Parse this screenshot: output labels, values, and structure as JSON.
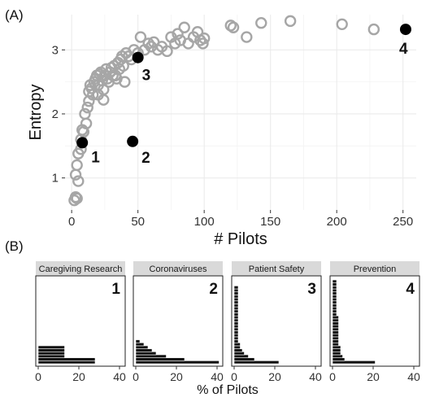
{
  "panel_a_label": "(A)",
  "panel_b_label": "(B)",
  "colors": {
    "hollow": "#a6a6a6",
    "highlight": "#000000",
    "strip": "#d9d9d9",
    "grid": "#ebebeb",
    "bar": "#111111",
    "bar_edge": "#ffffff"
  },
  "chart_data": [
    {
      "type": "scatter",
      "title": "",
      "xlabel": "# Pilots",
      "ylabel": "Entropy",
      "xlim": [
        -5,
        260
      ],
      "ylim": [
        0.5,
        3.55
      ],
      "xticks": [
        0,
        50,
        100,
        150,
        200,
        250
      ],
      "yticks": [
        1,
        2,
        3
      ],
      "grid": true,
      "series": [
        {
          "points": [
            [
              2,
              0.65
            ],
            [
              3,
              0.7
            ],
            [
              4,
              0.68
            ],
            [
              3,
              1.05
            ],
            [
              5,
              0.95
            ],
            [
              4,
              1.2
            ],
            [
              5,
              1.38
            ],
            [
              7,
              1.45
            ],
            [
              7,
              1.6
            ],
            [
              8,
              1.75
            ],
            [
              9,
              1.72
            ],
            [
              11,
              1.85
            ],
            [
              10,
              2.0
            ],
            [
              12,
              2.1
            ],
            [
              13,
              2.2
            ],
            [
              13,
              2.35
            ],
            [
              14,
              2.45
            ],
            [
              15,
              2.4
            ],
            [
              16,
              2.3
            ],
            [
              17,
              2.5
            ],
            [
              18,
              2.55
            ],
            [
              19,
              2.6
            ],
            [
              20,
              2.45
            ],
            [
              20,
              2.3
            ],
            [
              21,
              2.62
            ],
            [
              22,
              2.65
            ],
            [
              23,
              2.52
            ],
            [
              24,
              2.38
            ],
            [
              24,
              2.22
            ],
            [
              25,
              2.6
            ],
            [
              26,
              2.7
            ],
            [
              27,
              2.55
            ],
            [
              28,
              2.5
            ],
            [
              29,
              2.65
            ],
            [
              30,
              2.72
            ],
            [
              31,
              2.6
            ],
            [
              32,
              2.75
            ],
            [
              33,
              2.6
            ],
            [
              34,
              2.55
            ],
            [
              35,
              2.8
            ],
            [
              36,
              2.7
            ],
            [
              37,
              2.85
            ],
            [
              38,
              2.9
            ],
            [
              39,
              2.75
            ],
            [
              40,
              2.5
            ],
            [
              41,
              2.95
            ],
            [
              43,
              2.9
            ],
            [
              45,
              2.85
            ],
            [
              47,
              3.0
            ],
            [
              50,
              2.95
            ],
            [
              52,
              3.2
            ],
            [
              55,
              3.0
            ],
            [
              58,
              3.1
            ],
            [
              60,
              3.05
            ],
            [
              62,
              3.12
            ],
            [
              65,
              3.0
            ],
            [
              68,
              3.05
            ],
            [
              72,
              2.98
            ],
            [
              75,
              3.2
            ],
            [
              78,
              3.1
            ],
            [
              80,
              3.25
            ],
            [
              82,
              3.15
            ],
            [
              85,
              3.35
            ],
            [
              88,
              3.1
            ],
            [
              92,
              3.2
            ],
            [
              95,
              3.28
            ],
            [
              97,
              3.15
            ],
            [
              99,
              3.1
            ],
            [
              100,
              3.18
            ],
            [
              120,
              3.38
            ],
            [
              122,
              3.35
            ],
            [
              132,
              3.2
            ],
            [
              143,
              3.42
            ],
            [
              165,
              3.45
            ],
            [
              204,
              3.4
            ],
            [
              228,
              3.32
            ]
          ]
        },
        {
          "points": [
            [
              8,
              1.55
            ],
            [
              46,
              1.57
            ],
            [
              50,
              2.88
            ],
            [
              252,
              3.32
            ]
          ],
          "labels": [
            "1",
            "2",
            "3",
            "4"
          ]
        }
      ]
    },
    {
      "type": "bar",
      "orientation": "horizontal",
      "xlabel": "% of Pilots",
      "xlim": [
        0,
        40
      ],
      "xticks": [
        0,
        20,
        40
      ],
      "facets": [
        {
          "strip": "Caregiving Research",
          "number": "1",
          "values": [
            28,
            28,
            13,
            13,
            13,
            13
          ]
        },
        {
          "strip": "Coronaviruses",
          "number": "2",
          "values": [
            41,
            24,
            15,
            10,
            8,
            6,
            4,
            2
          ]
        },
        {
          "strip": "Patient Safety",
          "number": "3",
          "values": [
            22,
            10,
            7,
            5,
            4,
            3,
            3,
            2,
            2,
            2,
            2,
            2,
            2,
            2,
            2,
            2,
            2,
            2,
            2,
            2,
            2,
            2,
            2,
            2,
            2,
            2
          ]
        },
        {
          "strip": "Prevention",
          "number": "4",
          "values": [
            21,
            6,
            5,
            4,
            4,
            4,
            3,
            3,
            3,
            3,
            3,
            3,
            3,
            3,
            3,
            3,
            2,
            2,
            2,
            2,
            2,
            2,
            2,
            2,
            2,
            2,
            2,
            2
          ]
        }
      ]
    }
  ]
}
